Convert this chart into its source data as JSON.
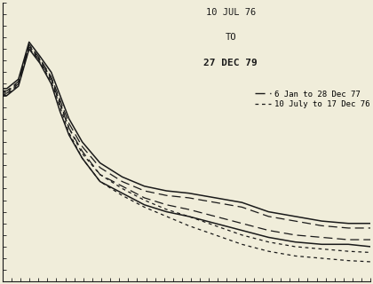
{
  "background_color": "#f0edda",
  "title_line1": "10 JUL 76",
  "title_line2": "TO",
  "title_line3": "27 DEC 79",
  "legend_solid_label": "6 Jan to 28 Dec 77",
  "legend_dashed_label": "10 July to 17 Dec 76",
  "line_color": "#1a1a1a",
  "annotation_fontsize": 7.5,
  "legend_fontsize": 6.5,
  "env_upper_x": [
    0,
    5,
    18,
    30,
    42,
    55,
    65,
    75,
    90,
    110,
    135,
    160,
    185,
    210,
    240,
    270,
    300,
    330,
    360,
    390,
    415
  ],
  "env_upper_y": [
    5.8,
    5.8,
    6.2,
    7.8,
    7.2,
    6.5,
    5.5,
    4.5,
    3.5,
    2.6,
    2.0,
    1.6,
    1.4,
    1.3,
    1.1,
    0.9,
    0.5,
    0.3,
    0.1,
    0.0,
    0.0
  ],
  "env_lower_x": [
    0,
    5,
    18,
    30,
    42,
    55,
    65,
    75,
    90,
    110,
    135,
    160,
    185,
    210,
    240,
    270,
    300,
    330,
    360,
    390,
    415
  ],
  "env_lower_y": [
    5.5,
    5.5,
    5.9,
    7.5,
    6.9,
    6.0,
    4.8,
    3.8,
    2.8,
    1.8,
    1.3,
    0.8,
    0.5,
    0.3,
    0.0,
    -0.3,
    -0.6,
    -0.8,
    -0.9,
    -0.9,
    -1.0
  ],
  "solid_upper_x": [
    0,
    5,
    18,
    30,
    42,
    55,
    65,
    75,
    90,
    110,
    135,
    160,
    185,
    210,
    240,
    270,
    300,
    330,
    360,
    390,
    415
  ],
  "solid_upper_y": [
    5.7,
    5.7,
    6.1,
    7.7,
    7.1,
    6.3,
    5.3,
    4.3,
    3.3,
    2.4,
    1.8,
    1.4,
    1.2,
    1.1,
    0.9,
    0.7,
    0.3,
    0.1,
    -0.1,
    -0.2,
    -0.2
  ],
  "solid_lower_x": [
    0,
    5,
    18,
    30,
    42,
    55,
    65,
    75,
    90,
    110,
    135,
    160,
    185,
    210,
    240,
    270,
    300,
    330,
    360,
    390,
    415
  ],
  "solid_lower_y": [
    5.6,
    5.6,
    6.0,
    7.6,
    7.0,
    6.2,
    5.1,
    4.1,
    3.1,
    2.1,
    1.6,
    1.1,
    0.8,
    0.6,
    0.3,
    0.0,
    -0.3,
    -0.5,
    -0.6,
    -0.7,
    -0.7
  ],
  "dash_upper_x": [
    0,
    5,
    18,
    30,
    42,
    55,
    65,
    75,
    90,
    110,
    135,
    160,
    185,
    210,
    240,
    270,
    300,
    330,
    360,
    390,
    415
  ],
  "dash_upper_y": [
    5.65,
    5.65,
    6.05,
    7.65,
    7.05,
    6.25,
    5.2,
    4.1,
    3.0,
    2.1,
    1.5,
    1.0,
    0.6,
    0.3,
    -0.1,
    -0.5,
    -0.8,
    -1.0,
    -1.1,
    -1.2,
    -1.25
  ],
  "dash_lower_x": [
    0,
    5,
    18,
    30,
    42,
    55,
    65,
    75,
    90,
    110,
    135,
    160,
    185,
    210,
    240,
    270,
    300,
    330,
    360,
    390,
    415
  ],
  "dash_lower_y": [
    5.55,
    5.55,
    5.95,
    7.55,
    6.95,
    6.1,
    5.0,
    3.9,
    2.8,
    1.8,
    1.2,
    0.7,
    0.3,
    -0.1,
    -0.5,
    -0.9,
    -1.2,
    -1.4,
    -1.5,
    -1.6,
    -1.65
  ],
  "xlim": [
    0,
    415
  ],
  "ylim": [
    -2.5,
    9.5
  ]
}
